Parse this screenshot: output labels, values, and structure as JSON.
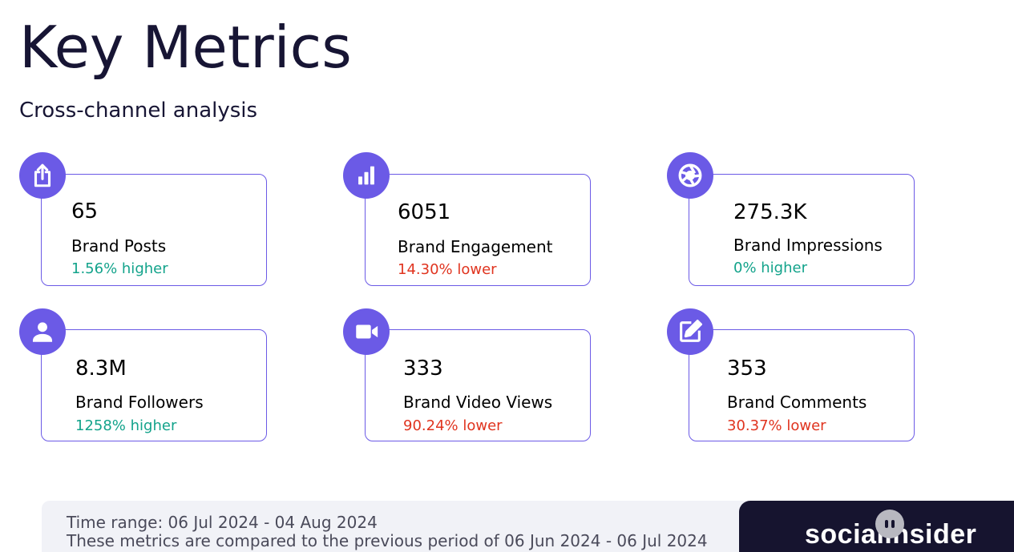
{
  "header": {
    "title": "Key Metrics",
    "subtitle": "Cross-channel analysis"
  },
  "metrics": [
    {
      "value": "65",
      "label": "Brand Posts",
      "change": "1.56% higher",
      "trend": "up",
      "icon": "share-icon"
    },
    {
      "value": "6051",
      "label": "Brand Engagement",
      "change": "14.30% lower",
      "trend": "down",
      "icon": "bar-chart-icon"
    },
    {
      "value": "275.3K",
      "label": "Brand Impressions",
      "change": "0% higher",
      "trend": "up",
      "icon": "aperture-icon"
    },
    {
      "value": "8.3M",
      "label": "Brand Followers",
      "change": "1258% higher",
      "trend": "up",
      "icon": "person-icon"
    },
    {
      "value": "333",
      "label": "Brand Video Views",
      "change": "90.24% lower",
      "trend": "down",
      "icon": "video-camera-icon"
    },
    {
      "value": "353",
      "label": "Brand Comments",
      "change": "30.37% lower",
      "trend": "down",
      "icon": "edit-icon"
    }
  ],
  "footer": {
    "time_range": "Time range: 06 Jul 2024 - 04 Aug 2024",
    "comparison": "These metrics are compared to the previous period of 06 Jun 2024 - 06 Jul 2024",
    "brand": "socialinsider"
  },
  "colors": {
    "accent": "#6b5ae6",
    "positive": "#13a38b",
    "negative": "#e0341f",
    "title": "#171534",
    "brand_bg": "#16142f"
  }
}
